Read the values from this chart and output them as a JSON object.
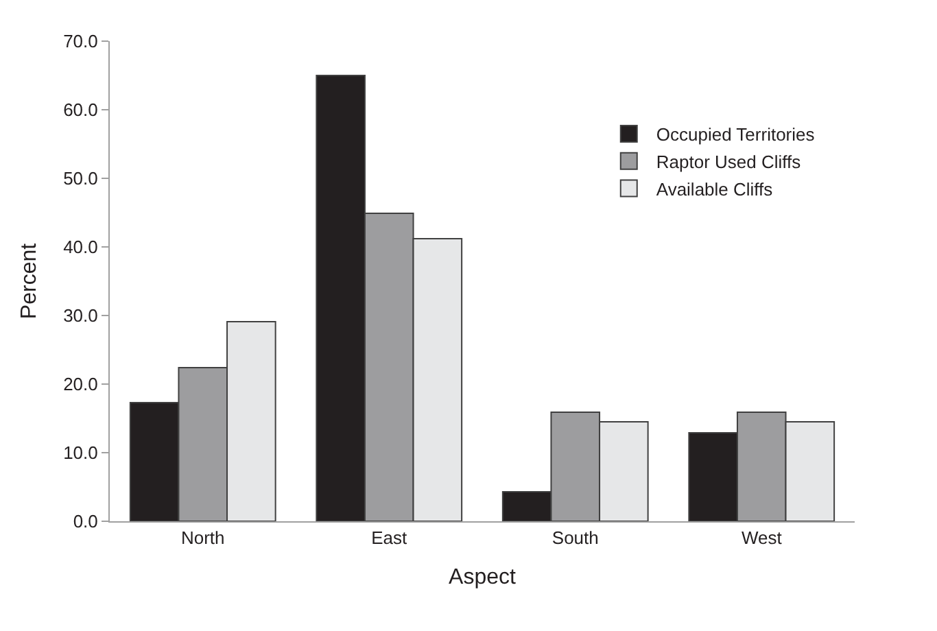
{
  "chart_data": {
    "type": "bar",
    "xlabel": "Aspect",
    "ylabel": "Percent",
    "categories": [
      "North",
      "East",
      "South",
      "West"
    ],
    "series": [
      {
        "name": "Occupied Territories",
        "color": "#231f20",
        "values": [
          17.3,
          65.0,
          4.3,
          12.9
        ]
      },
      {
        "name": "Raptor Used Cliffs",
        "color": "#9d9d9f",
        "values": [
          22.4,
          44.9,
          15.9,
          15.9
        ]
      },
      {
        "name": "Available Cliffs",
        "color": "#e6e7e8",
        "values": [
          29.1,
          41.2,
          14.5,
          14.5
        ]
      }
    ],
    "ylim": [
      0,
      70
    ],
    "yticks": [
      {
        "value": 0,
        "label": "0.0"
      },
      {
        "value": 10,
        "label": "10.0"
      },
      {
        "value": 20,
        "label": "20.0"
      },
      {
        "value": 30,
        "label": "30.0"
      },
      {
        "value": 40,
        "label": "40.0"
      },
      {
        "value": 50,
        "label": "50.0"
      },
      {
        "value": 60,
        "label": "60.0"
      },
      {
        "value": 70,
        "label": "70.0"
      }
    ],
    "legend": "top right"
  }
}
